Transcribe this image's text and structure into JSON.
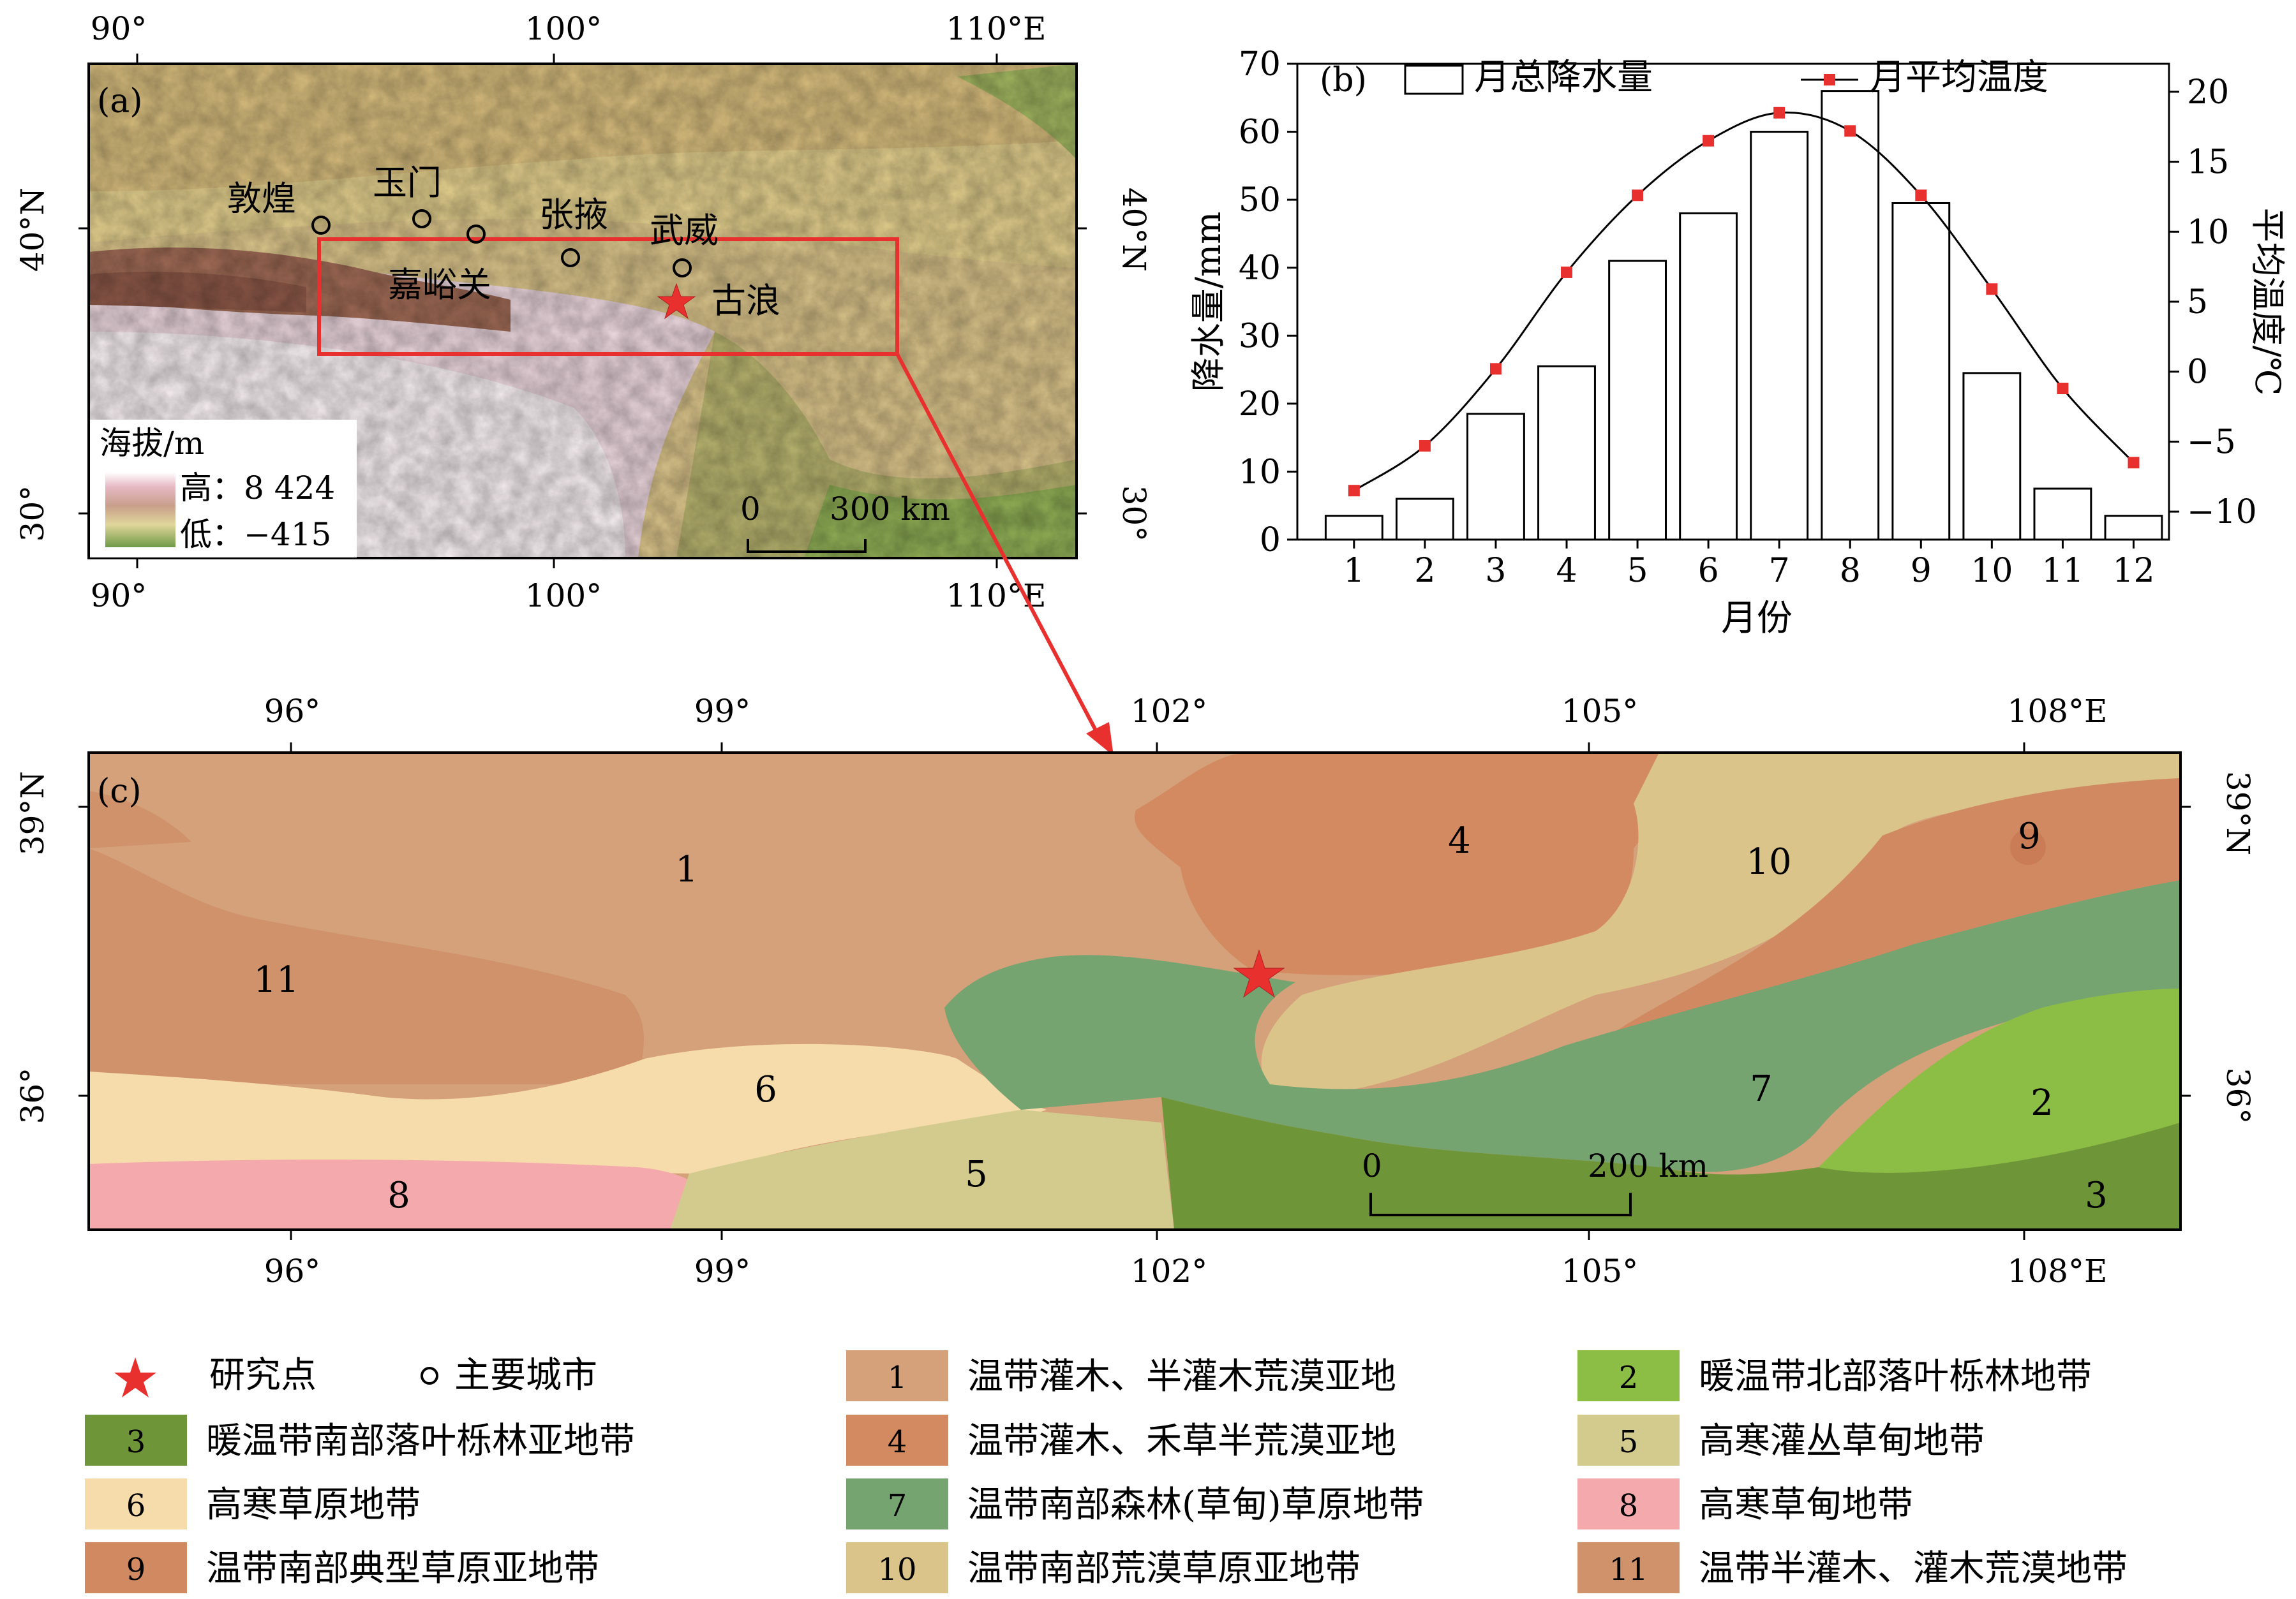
{
  "panel_a": {
    "label": "(a)",
    "top_lon_ticks": [
      "90°",
      "100°",
      "110°E"
    ],
    "bottom_lon_ticks": [
      "90°",
      "100°",
      "110°E"
    ],
    "left_lat_ticks": [
      "40°N",
      "30°"
    ],
    "right_lat_ticks": [
      "40°N",
      "30°"
    ],
    "cities": [
      "敦煌",
      "玉门",
      "张掖",
      "武威",
      "嘉峪关"
    ],
    "study_site": "古浪",
    "elevation_legend": {
      "title": "海拔/m",
      "high": "高：8 424",
      "low": "低：−415"
    },
    "scalebar": {
      "zero": "0",
      "end": "300 km"
    }
  },
  "chart_data": {
    "type": "bar",
    "panel_label": "(b)",
    "xlabel": "月份",
    "categories": [
      "1",
      "2",
      "3",
      "4",
      "5",
      "6",
      "7",
      "8",
      "9",
      "10",
      "11",
      "12"
    ],
    "series": [
      {
        "name": "月总降水量",
        "kind": "bar",
        "axis": "left",
        "values": [
          3.5,
          6,
          18.5,
          25.5,
          41,
          48,
          60,
          66,
          49.5,
          24.5,
          7.5,
          3.5
        ]
      },
      {
        "name": "月平均温度",
        "kind": "line",
        "axis": "right",
        "values": [
          -8.5,
          -5.3,
          0.2,
          7.1,
          12.6,
          16.5,
          18.5,
          17.2,
          12.6,
          5.9,
          -1.2,
          -6.5
        ]
      }
    ],
    "ylabel_left": "降水量/mm",
    "ylabel_right": "平均温度/℃",
    "ylim_left": [
      0,
      70
    ],
    "yticks_left": [
      "0",
      "10",
      "20",
      "30",
      "40",
      "50",
      "60",
      "70"
    ],
    "ylim_right": [
      -12,
      22
    ],
    "yticks_right": [
      "−10",
      "−5",
      "0",
      "5",
      "10",
      "15",
      "20"
    ],
    "colors": {
      "bar_fill": "#ffffff",
      "bar_edge": "#000000",
      "line": "#000000",
      "marker": "#e8312f"
    }
  },
  "panel_c": {
    "label": "(c)",
    "top_lon_ticks": [
      "96°",
      "99°",
      "102°",
      "105°",
      "108°E"
    ],
    "bottom_lon_ticks": [
      "96°",
      "99°",
      "102°",
      "105°",
      "108°E"
    ],
    "left_lat_ticks": [
      "39°N",
      "36°"
    ],
    "right_lat_ticks": [
      "39°N",
      "36°"
    ],
    "zone_labels": [
      "1",
      "2",
      "3",
      "4",
      "5",
      "6",
      "7",
      "8",
      "9",
      "10",
      "11"
    ],
    "scalebar": {
      "zero": "0",
      "end": "200 km"
    }
  },
  "legend": {
    "study_site": "研究点",
    "main_city": "主要城市",
    "items": [
      {
        "num": "1",
        "label": "温带灌木、半灌木荒漠亚地",
        "color": "#d4a17a"
      },
      {
        "num": "2",
        "label": "暖温带北部落叶栎林地带",
        "color": "#8cbd45"
      },
      {
        "num": "3",
        "label": "暖温带南部落叶栎林亚地带",
        "color": "#6e9639"
      },
      {
        "num": "4",
        "label": "温带灌木、禾草半荒漠亚地",
        "color": "#d38a60"
      },
      {
        "num": "5",
        "label": "高寒灌丛草甸地带",
        "color": "#d3cb8d"
      },
      {
        "num": "6",
        "label": "高寒草原地带",
        "color": "#f7dcab"
      },
      {
        "num": "7",
        "label": "温带南部森林(草甸)草原地带",
        "color": "#75a471"
      },
      {
        "num": "8",
        "label": "高寒草甸地带",
        "color": "#f4aaac"
      },
      {
        "num": "9",
        "label": "温带南部典型草原亚地带",
        "color": "#d08960"
      },
      {
        "num": "10",
        "label": "温带南部荒漠草原亚地带",
        "color": "#dbc48a"
      },
      {
        "num": "11",
        "label": "温带半灌木、灌木荒漠地带",
        "color": "#cf926a"
      }
    ]
  }
}
